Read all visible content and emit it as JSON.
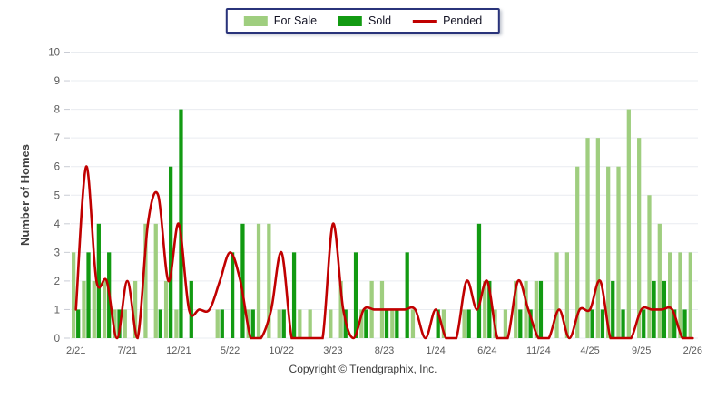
{
  "legend": {
    "for_sale_label": "For Sale",
    "sold_label": "Sold",
    "pended_label": "Pended"
  },
  "y_axis": {
    "title": "Number of Homes",
    "ticks": [
      0,
      1,
      2,
      3,
      4,
      5,
      6,
      7,
      8,
      9,
      10
    ]
  },
  "footer": {
    "copyright": "Copyright © Trendgraphix, Inc."
  },
  "colors": {
    "for_sale": "#9fce7f",
    "sold": "#129a12",
    "pended": "#c00000",
    "grid": "#e9ecf0",
    "tick_dash": "#c9ccd4",
    "axis_text": "#5a5a5a",
    "legend_border": "#29337a"
  },
  "chart_data": {
    "type": "bar",
    "title": "",
    "xlabel": "",
    "ylabel": "Number of Homes",
    "ylim": [
      0,
      10
    ],
    "grid": "horizontal",
    "legend_position": "top-center",
    "x": [
      "2/21",
      "3/21",
      "4/21",
      "5/21",
      "6/21",
      "7/21",
      "8/21",
      "9/21",
      "10/21",
      "11/21",
      "12/21",
      "1/22",
      "2/22",
      "3/22",
      "4/22",
      "5/22",
      "6/22",
      "7/22",
      "8/22",
      "9/22",
      "10/22",
      "11/22",
      "12/22",
      "1/23",
      "2/23",
      "3/23",
      "4/23",
      "5/23",
      "6/23",
      "7/23",
      "8/23",
      "9/23",
      "10/23",
      "11/23",
      "12/23",
      "1/24",
      "2/24",
      "3/24",
      "4/24",
      "5/24",
      "6/24",
      "7/24",
      "8/24",
      "9/24",
      "10/24",
      "11/24",
      "12/24",
      "1/25",
      "2/25",
      "3/25",
      "4/25",
      "5/25",
      "6/25",
      "7/25",
      "8/25",
      "9/25",
      "10/25",
      "11/25",
      "12/25",
      "1/26",
      "2/26"
    ],
    "x_tick_shown_every": 5,
    "series": [
      {
        "name": "For Sale",
        "kind": "bar",
        "values": [
          3,
          2,
          2,
          2,
          1,
          1,
          2,
          4,
          4,
          2,
          1,
          0,
          0,
          0,
          1,
          0,
          0,
          1,
          4,
          4,
          1,
          0,
          1,
          1,
          0,
          1,
          2,
          0,
          1,
          2,
          2,
          1,
          0,
          1,
          0,
          0,
          1,
          0,
          1,
          0,
          2,
          1,
          1,
          2,
          2,
          2,
          0,
          3,
          3,
          6,
          7,
          7,
          6,
          6,
          8,
          7,
          5,
          4,
          3,
          3,
          3
        ]
      },
      {
        "name": "Sold",
        "kind": "bar",
        "values": [
          1,
          3,
          4,
          3,
          1,
          0,
          0,
          0,
          1,
          6,
          8,
          2,
          0,
          0,
          1,
          3,
          4,
          1,
          0,
          0,
          1,
          3,
          0,
          0,
          0,
          0,
          1,
          3,
          1,
          0,
          1,
          1,
          3,
          0,
          0,
          1,
          0,
          0,
          1,
          4,
          2,
          0,
          0,
          1,
          1,
          2,
          0,
          0,
          0,
          0,
          1,
          1,
          2,
          1,
          0,
          1,
          2,
          2,
          1,
          1,
          0
        ]
      },
      {
        "name": "Pended",
        "kind": "line",
        "values": [
          1,
          6,
          2,
          2,
          0,
          2,
          0,
          4,
          5,
          2,
          4,
          1,
          1,
          1,
          2,
          3,
          2,
          0,
          0,
          1,
          3,
          0,
          0,
          0,
          0,
          4,
          1,
          0,
          1,
          1,
          1,
          1,
          1,
          1,
          0,
          1,
          0,
          0,
          2,
          1,
          2,
          0,
          0,
          2,
          1,
          0,
          0,
          1,
          0,
          1,
          1,
          2,
          0,
          0,
          0,
          1,
          1,
          1,
          1,
          0,
          0
        ]
      }
    ]
  }
}
